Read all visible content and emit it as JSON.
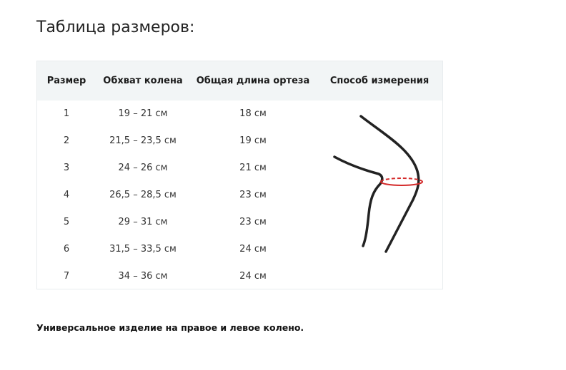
{
  "title": "Таблица размеров:",
  "table": {
    "headers": [
      "Размер",
      "Обхват колена",
      "Общая длина ортеза",
      "Способ измерения"
    ],
    "rows": [
      [
        "1",
        "19 – 21 см",
        "18 см"
      ],
      [
        "2",
        "21,5 – 23,5 см",
        "19 см"
      ],
      [
        "3",
        "24 – 26 см",
        "21 см"
      ],
      [
        "4",
        "26,5 – 28,5 см",
        "23 см"
      ],
      [
        "5",
        "29 – 31 см",
        "23 см"
      ],
      [
        "6",
        "31,5 – 33,5 см",
        "24 см"
      ],
      [
        "7",
        "34 – 36 см",
        "24 см"
      ]
    ],
    "illustration": "knee-measurement-diagram",
    "colors": {
      "header_bg": "#f2f5f6",
      "measure_line": "#d42a2a",
      "leg_line": "#222222"
    }
  },
  "note": "Универсальное изделие на правое и левое колено."
}
